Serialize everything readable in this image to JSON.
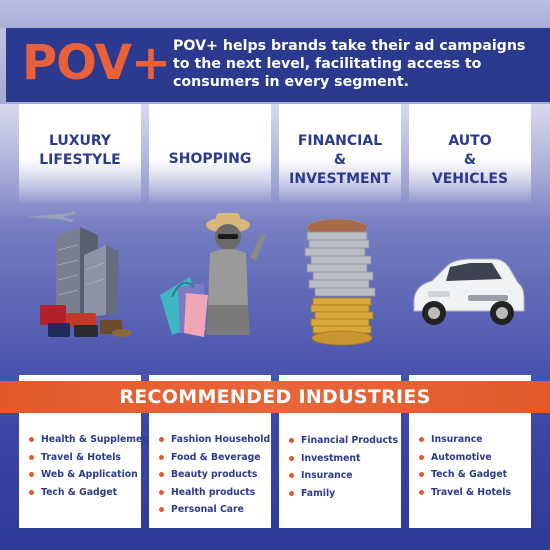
{
  "brand": {
    "logo_text": "POV+",
    "tagline": "POV+ helps brands take their ad campaigns to the next level, facilitating access to consumers in every segment."
  },
  "categories": [
    {
      "title": "LUXURY LIFESTYLE",
      "illustration": "city-skyline-airplane-luxury-goods"
    },
    {
      "title": "SHOPPING",
      "illustration": "woman-with-shopping-bags"
    },
    {
      "title": "FINANCIAL & INVESTMENT",
      "illustration": "coin-stacks"
    },
    {
      "title": "AUTO & VEHICLES",
      "illustration": "white-suv"
    }
  ],
  "recommended": {
    "heading": "RECOMMENDED INDUSTRIES",
    "columns": [
      [
        "Health & Supplement",
        "Travel & Hotels",
        "Web & Application",
        "Tech & Gadget"
      ],
      [
        "Fashion Household",
        "Food & Beverage",
        "Beauty products",
        "Health products",
        "Personal Care"
      ],
      [
        "Financial Products",
        "Investment",
        "Insurance",
        "Family"
      ],
      [
        "Insurance",
        "Automotive",
        "Tech & Gadget",
        "Travel & Hotels"
      ]
    ]
  },
  "colors": {
    "primary": "#2b3a8e",
    "accent": "#e25a2c",
    "white": "#ffffff"
  }
}
